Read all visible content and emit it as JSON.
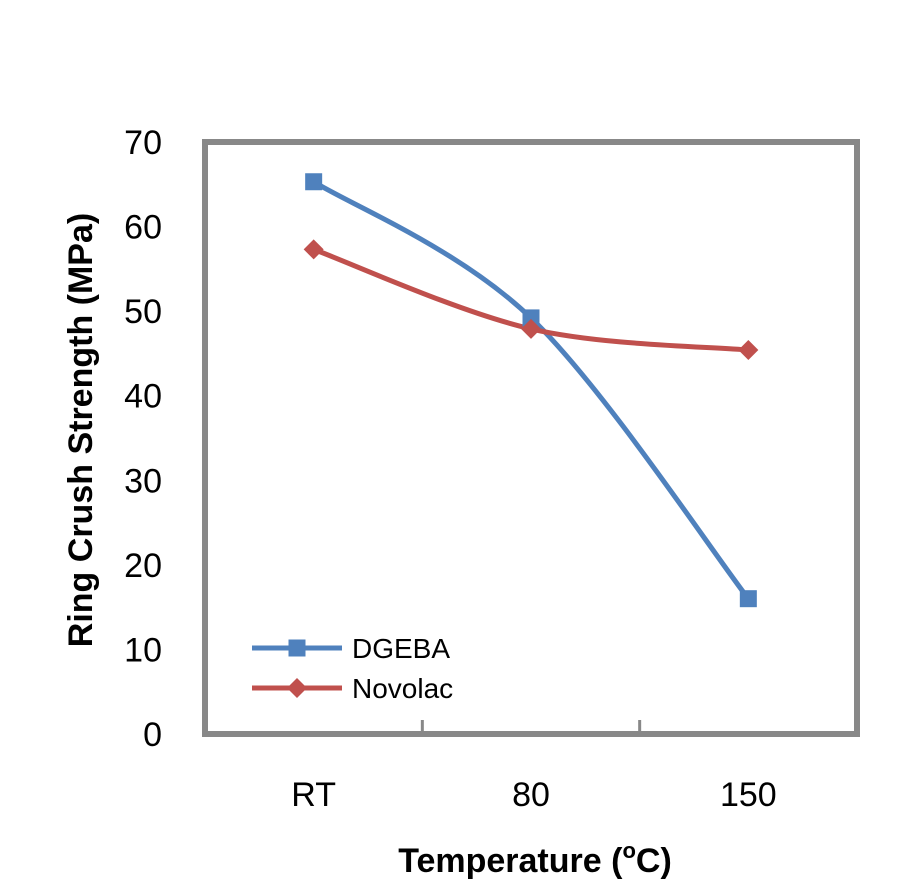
{
  "chart_data": {
    "type": "line",
    "smooth": true,
    "categories": [
      "RT",
      "80",
      "150"
    ],
    "series": [
      {
        "name": "DGEBA",
        "values": [
          65.3,
          49.2,
          16.0
        ],
        "color": "#4F81BD",
        "marker": "square"
      },
      {
        "name": "Novolac",
        "values": [
          57.3,
          47.9,
          45.4
        ],
        "color": "#C0504D",
        "marker": "diamond"
      }
    ],
    "xlabel": "Temperature (",
    "xlabel_sup": "o",
    "xlabel_tail": "C)",
    "ylabel": "Ring Crush Strength (MPa)",
    "ylim": [
      0,
      70
    ],
    "yticks": [
      0,
      10,
      20,
      30,
      40,
      50,
      60,
      70
    ],
    "grid": false,
    "legend_position": "bottom-left",
    "plot_border_color": "#888888"
  }
}
